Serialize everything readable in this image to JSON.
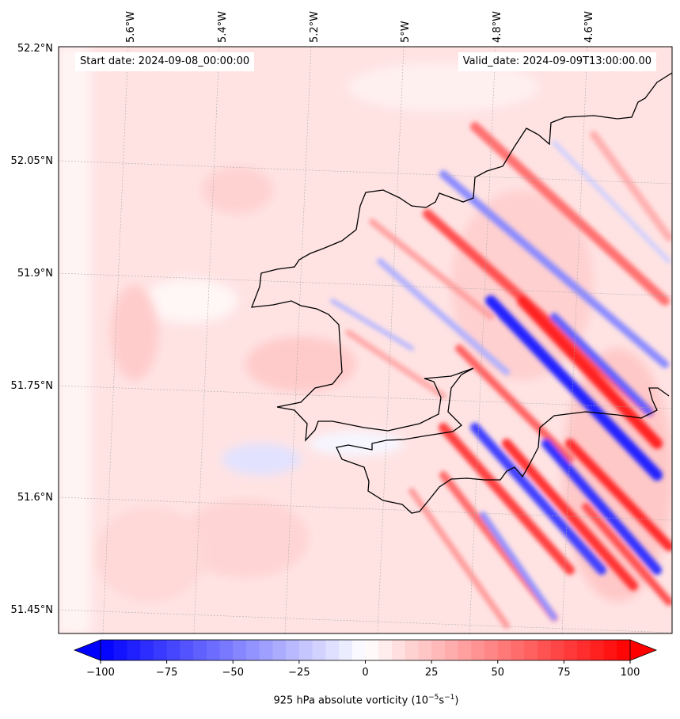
{
  "map": {
    "start_date": "Start date: 2024-09-08_00:00:00",
    "valid_date": "Valid_date: 2024-09-09T13:00:00.00",
    "lon_labels": [
      "5.6°W",
      "5.4°W",
      "5.2°W",
      "5°W",
      "4.8°W",
      "4.6°W"
    ],
    "lat_labels": [
      "52.2°N",
      "52.05°N",
      "51.9°N",
      "51.75°N",
      "51.6°N",
      "51.45°N"
    ],
    "region": "Pembrokeshire coast, SW Wales",
    "colors": {
      "min": "#0000ff",
      "mid": "#ffffff",
      "max": "#ff0000",
      "coastline": "#000000"
    }
  },
  "colorbar": {
    "ticks": [
      "−100",
      "−75",
      "−50",
      "−25",
      "0",
      "25",
      "50",
      "75",
      "100"
    ],
    "label_prefix": "925 hPa absolute vorticity (10",
    "label_exp1": "−5",
    "label_mid": "s",
    "label_exp2": "−1",
    "label_suffix": ")",
    "range": [
      -100,
      100
    ],
    "colormap": "bwr"
  }
}
